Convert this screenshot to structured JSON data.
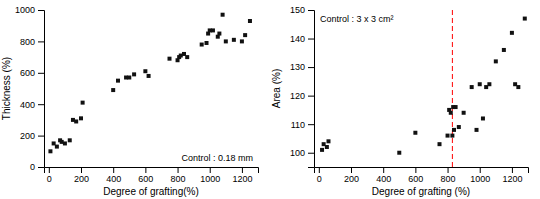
{
  "chart_data": [
    {
      "type": "scatter",
      "xlabel": "Degree of grafting(%)",
      "ylabel": "Thickness (%)",
      "annotation": "Control : 0.18 mm",
      "xlim": [
        -30,
        1300
      ],
      "ylim": [
        0,
        1000
      ],
      "xticks": [
        0,
        200,
        400,
        600,
        800,
        1000,
        1200
      ],
      "yticks": [
        0,
        200,
        400,
        600,
        800,
        1000
      ],
      "x": [
        10,
        30,
        50,
        70,
        80,
        100,
        130,
        150,
        170,
        200,
        210,
        400,
        430,
        480,
        500,
        530,
        600,
        620,
        750,
        800,
        810,
        820,
        840,
        860,
        950,
        980,
        990,
        1000,
        1020,
        1050,
        1060,
        1080,
        1100,
        1150,
        1200,
        1220,
        1250
      ],
      "values": [
        100,
        150,
        130,
        170,
        160,
        150,
        170,
        300,
        290,
        310,
        410,
        490,
        550,
        570,
        570,
        590,
        610,
        580,
        690,
        680,
        700,
        710,
        720,
        700,
        780,
        790,
        850,
        870,
        870,
        830,
        850,
        970,
        800,
        810,
        800,
        840,
        930
      ],
      "marker": "square",
      "color": "#111111"
    },
    {
      "type": "scatter",
      "xlabel": "Degree of grafting (%)",
      "ylabel": "Area (%)",
      "annotation": "Control : 3 x 3 cm²",
      "xlim": [
        -30,
        1300
      ],
      "ylim": [
        95,
        150
      ],
      "xticks": [
        0,
        200,
        400,
        600,
        800,
        1000,
        1200
      ],
      "yticks": [
        100,
        110,
        120,
        130,
        140,
        150
      ],
      "x": [
        20,
        30,
        50,
        60,
        500,
        600,
        750,
        800,
        810,
        820,
        830,
        835,
        840,
        850,
        870,
        900,
        950,
        980,
        1000,
        1020,
        1040,
        1060,
        1100,
        1150,
        1200,
        1220,
        1240,
        1280
      ],
      "values": [
        101,
        103,
        102,
        104,
        100,
        107,
        103,
        106,
        115,
        114,
        106,
        116,
        108,
        116,
        109,
        114,
        123,
        108,
        124,
        112,
        123,
        124,
        132,
        136,
        142,
        124,
        123,
        147
      ],
      "vlines": [
        {
          "x": 830,
          "color": "#ff0000",
          "line_style": "dashed"
        }
      ],
      "marker": "square",
      "color": "#111111"
    }
  ]
}
